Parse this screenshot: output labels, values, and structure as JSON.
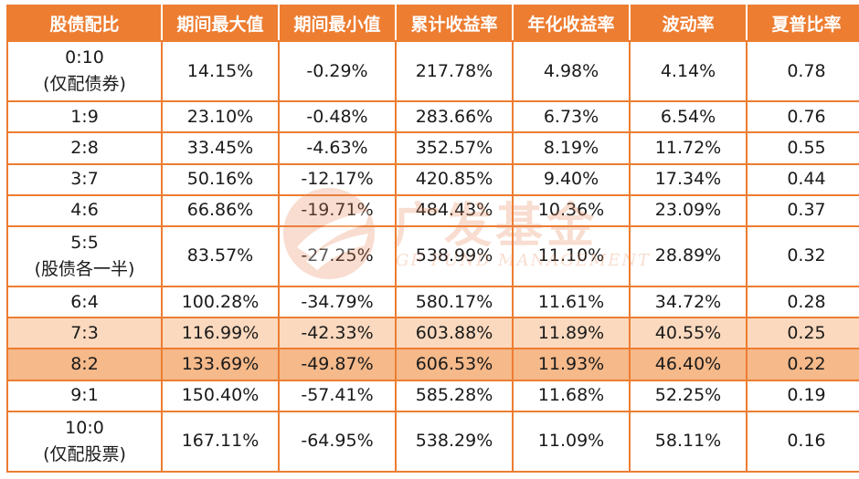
{
  "table": {
    "headers": [
      "股债配比",
      "期间最大值",
      "期间最小值",
      "累计收益率",
      "年化收益率",
      "波动率",
      "夏普比率"
    ],
    "rows": [
      {
        "ratio": [
          "0:10",
          "(仅配债券)"
        ],
        "max": "14.15%",
        "min": "-0.29%",
        "cumulative": "217.78%",
        "annualized": "4.98%",
        "volatility": "4.14%",
        "sharpe": "0.78"
      },
      {
        "ratio": [
          "1:9"
        ],
        "max": "23.10%",
        "min": "-0.48%",
        "cumulative": "283.66%",
        "annualized": "6.73%",
        "volatility": "6.54%",
        "sharpe": "0.76"
      },
      {
        "ratio": [
          "2:8"
        ],
        "max": "33.45%",
        "min": "-4.63%",
        "cumulative": "352.57%",
        "annualized": "8.19%",
        "volatility": "11.72%",
        "sharpe": "0.55"
      },
      {
        "ratio": [
          "3:7"
        ],
        "max": "50.16%",
        "min": "-12.17%",
        "cumulative": "420.85%",
        "annualized": "9.40%",
        "volatility": "17.34%",
        "sharpe": "0.44"
      },
      {
        "ratio": [
          "4:6"
        ],
        "max": "66.86%",
        "min": "-19.71%",
        "cumulative": "484.43%",
        "annualized": "10.36%",
        "volatility": "23.09%",
        "sharpe": "0.37"
      },
      {
        "ratio": [
          "5:5",
          "(股债各一半)"
        ],
        "max": "83.57%",
        "min": "-27.25%",
        "cumulative": "538.99%",
        "annualized": "11.10%",
        "volatility": "28.89%",
        "sharpe": "0.32"
      },
      {
        "ratio": [
          "6:4"
        ],
        "max": "100.28%",
        "min": "-34.79%",
        "cumulative": "580.17%",
        "annualized": "11.61%",
        "volatility": "34.72%",
        "sharpe": "0.28"
      },
      {
        "ratio": [
          "7:3"
        ],
        "max": "116.99%",
        "min": "-42.33%",
        "cumulative": "603.88%",
        "annualized": "11.89%",
        "volatility": "40.55%",
        "sharpe": "0.25"
      },
      {
        "ratio": [
          "8:2"
        ],
        "max": "133.69%",
        "min": "-49.87%",
        "cumulative": "606.53%",
        "annualized": "11.93%",
        "volatility": "46.40%",
        "sharpe": "0.22"
      },
      {
        "ratio": [
          "9:1"
        ],
        "max": "150.40%",
        "min": "-57.41%",
        "cumulative": "585.28%",
        "annualized": "11.68%",
        "volatility": "52.25%",
        "sharpe": "0.19"
      },
      {
        "ratio": [
          "10:0",
          "(仅配股票)"
        ],
        "max": "167.11%",
        "min": "-64.95%",
        "cumulative": "538.29%",
        "annualized": "11.09%",
        "volatility": "58.11%",
        "sharpe": "0.16"
      }
    ]
  },
  "watermark": {
    "name": "广发基金",
    "subtitle": "GF FUND MANAGEMENT"
  },
  "colors": {
    "header_bg": "#ED7D31",
    "border": "#ED7D31",
    "highlight_light": "#FBD9BE",
    "highlight_dark": "#F5B98A"
  }
}
